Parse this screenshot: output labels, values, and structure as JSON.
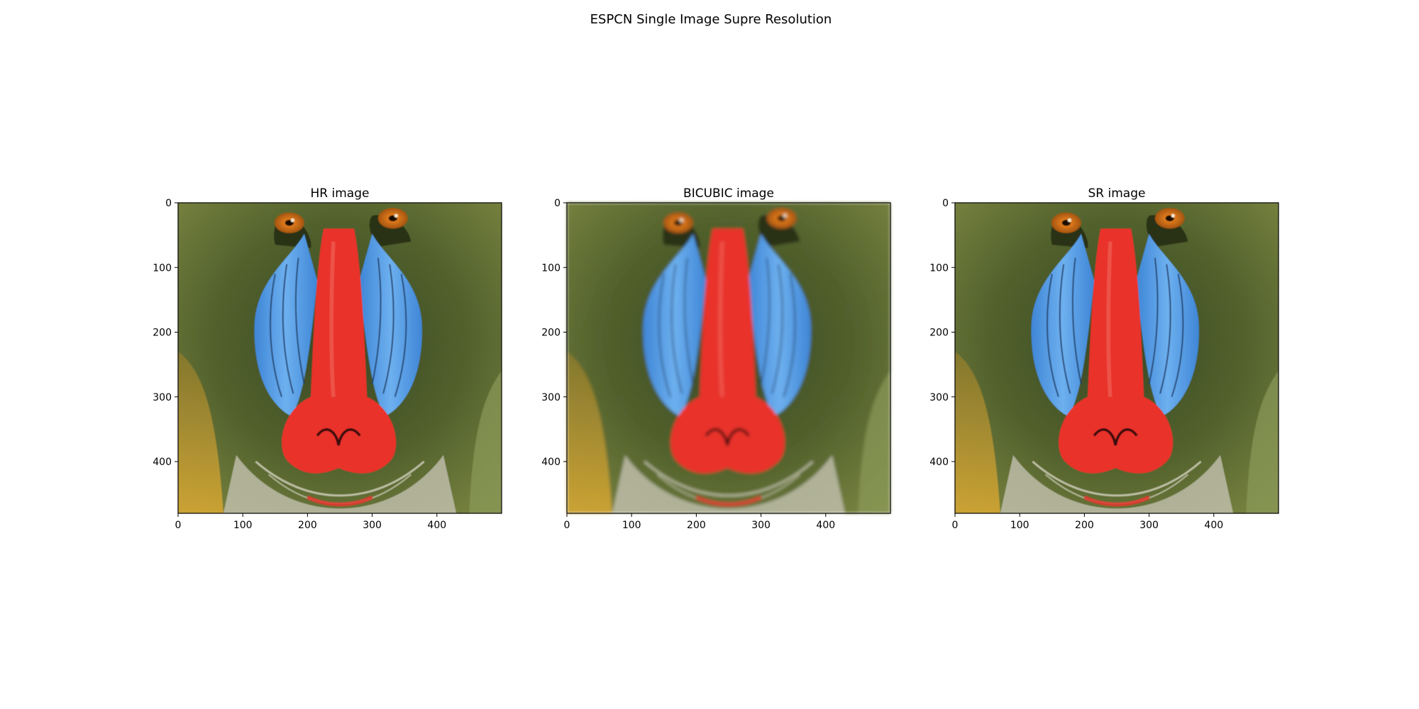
{
  "figure": {
    "title": "ESPCN Single Image Supre Resolution",
    "panels": [
      {
        "title": "HR image",
        "subject": "mandrill-face-photo-sharp"
      },
      {
        "title": "BICUBIC image",
        "subject": "mandrill-face-photo-blurred"
      },
      {
        "title": "SR image",
        "subject": "mandrill-face-photo-super-resolved"
      }
    ],
    "xticks": [
      "0",
      "100",
      "200",
      "300",
      "400"
    ],
    "yticks": [
      "0",
      "100",
      "200",
      "300",
      "400"
    ],
    "x_values": [
      0,
      100,
      200,
      300,
      400
    ],
    "y_values": [
      0,
      100,
      200,
      300,
      400
    ],
    "image_width": 500,
    "image_height": 480
  },
  "colors": {
    "fur_dark": "#2f3a1f",
    "fur_olive": "#6b7a3a",
    "fur_gold": "#c8a23a",
    "nose_red": "#e8302a",
    "cheek_blue": "#5aa2e6",
    "eye_orange": "#d07018",
    "beard_light": "#c9c7b8"
  }
}
